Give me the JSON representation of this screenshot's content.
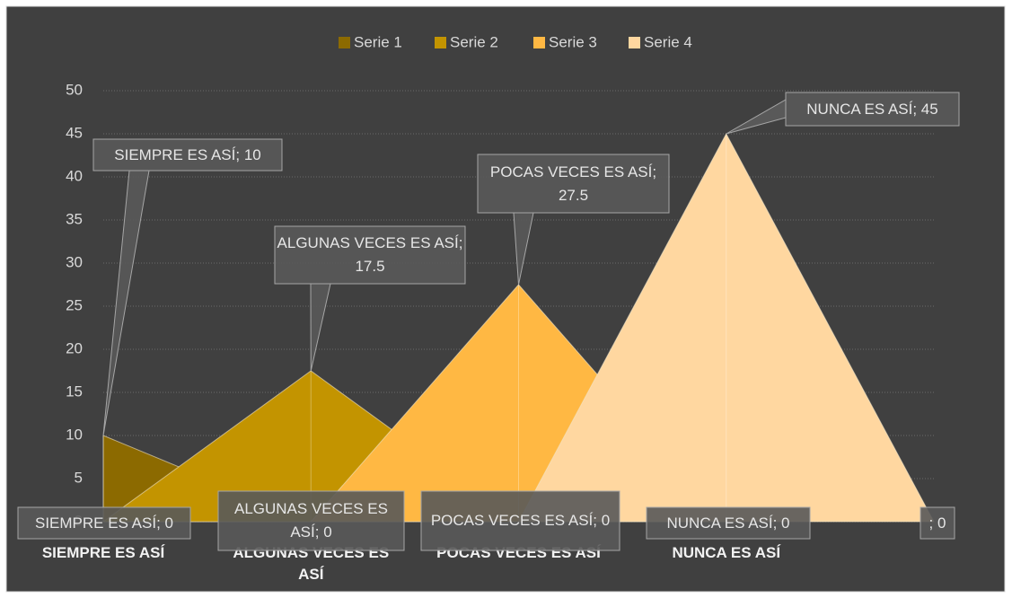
{
  "chart_data": {
    "type": "area",
    "categories": [
      "SIEMPRE ES ASÍ",
      "ALGUNAS VECES ES ASÍ",
      "POCAS VECES ES ASÍ",
      "NUNCA ES ASÍ",
      null
    ],
    "series": [
      {
        "name": "Serie 1",
        "color": "#8c6a00",
        "values": [
          10,
          0,
          null,
          null,
          null
        ],
        "value_labels": [
          "SIEMPRE ES ASÍ; 10",
          null,
          null,
          null,
          null
        ]
      },
      {
        "name": "Serie 2",
        "color": "#c39400",
        "values": [
          0,
          17.5,
          0,
          null,
          null
        ],
        "value_labels": [
          "SIEMPRE ES ASÍ; 0",
          "ALGUNAS VECES ES ASÍ; 17.5",
          null,
          null,
          null
        ]
      },
      {
        "name": "Serie 3",
        "color": "#ffb843",
        "values": [
          null,
          0,
          27.5,
          0,
          null
        ],
        "value_labels": [
          null,
          "ALGUNAS VECES ES ASÍ; 0",
          "POCAS VECES ES ASÍ; 27.5",
          "NUNCA ES ASÍ; 0",
          null
        ]
      },
      {
        "name": "Serie 4",
        "color": "#ffd7a0",
        "values": [
          null,
          null,
          0,
          45,
          0
        ],
        "value_labels": [
          null,
          null,
          "POCAS VECES ES ASÍ; 0",
          "NUNCA ES ASÍ; 45",
          "; 0"
        ]
      }
    ],
    "ylim": [
      0,
      50
    ],
    "yticks": [
      0,
      5,
      10,
      15,
      20,
      25,
      30,
      35,
      40,
      45,
      50
    ],
    "grid": true,
    "legend": "top"
  }
}
